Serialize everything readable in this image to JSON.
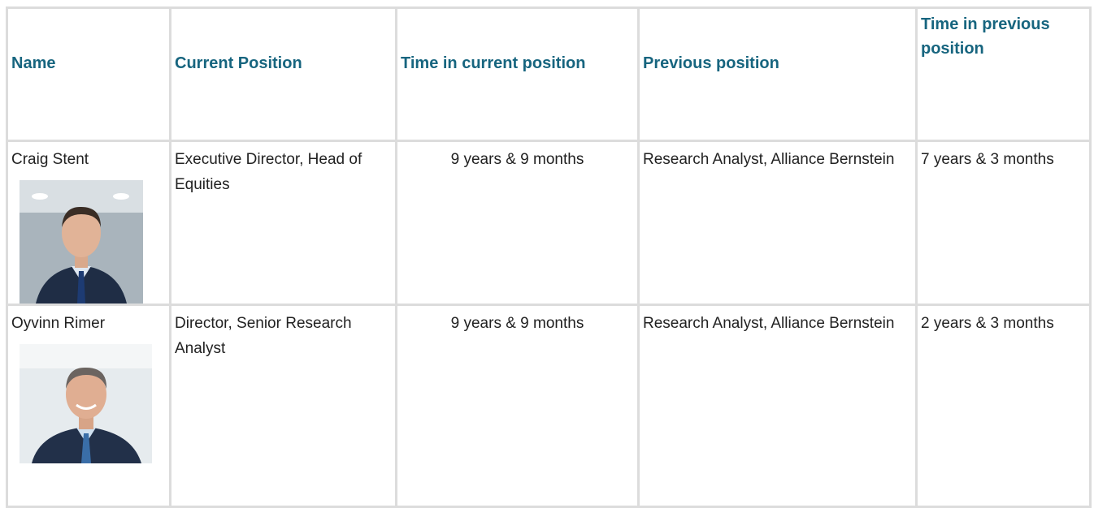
{
  "table": {
    "header": [
      "Name",
      "Current Position",
      "Time in current position",
      "Previous position",
      "Time in previous position"
    ],
    "rows": [
      [
        "Craig Stent",
        "Executive Director, Head of Equities",
        "9 years & 9 months",
        "Research Analyst, Alliance Bernstein",
        "7 years & 3 months"
      ],
      [
        "Oyvinn Rimer",
        "Director, Senior Research Analyst",
        "9 years & 9 months",
        "Research Analyst, Alliance Bernstein",
        "2 years & 3 months"
      ]
    ]
  }
}
